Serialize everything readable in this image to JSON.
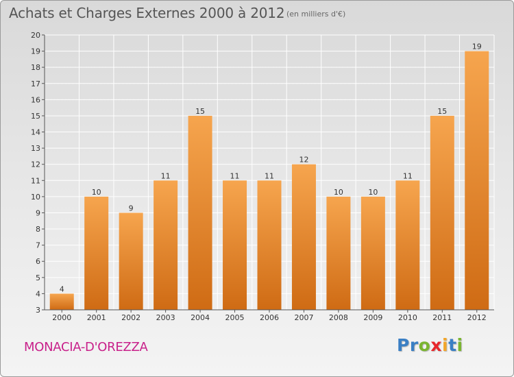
{
  "header": {
    "title": "Achats et Charges Externes 2000 à 2012",
    "subtitle": "(en milliers d'€)"
  },
  "footer": {
    "commune": "MONACIA-D'OREZZA",
    "logo": {
      "letters": [
        "P",
        "r",
        "o",
        "x",
        "i",
        "t",
        "i"
      ],
      "colors": [
        "#3a7fc4",
        "#3a7fc4",
        "#7ab530",
        "#e8262b",
        "#f2a62a",
        "#3a7fc4",
        "#7ab530"
      ]
    }
  },
  "colors": {
    "bar_light": "#f6a54e",
    "bar_dark": "#cf6b14",
    "grid": "#ffffff",
    "axis": "#555555",
    "text": "#333333"
  },
  "chart_data": {
    "type": "bar",
    "title": "Achats et Charges Externes 2000 à 2012",
    "subtitle": "(en milliers d'€)",
    "categories": [
      "2000",
      "2001",
      "2002",
      "2003",
      "2004",
      "2005",
      "2006",
      "2007",
      "2008",
      "2009",
      "2010",
      "2011",
      "2012"
    ],
    "values": [
      4,
      10,
      9,
      11,
      15,
      11,
      11,
      12,
      10,
      10,
      11,
      15,
      19
    ],
    "ylim": [
      3,
      20
    ],
    "yticks": [
      "3",
      "4",
      "5",
      "6",
      "7",
      "8",
      "9",
      "10",
      "11",
      "12",
      "13",
      "14",
      "15",
      "16",
      "17",
      "18",
      "19",
      "20"
    ],
    "grid": true,
    "legend": "none"
  }
}
